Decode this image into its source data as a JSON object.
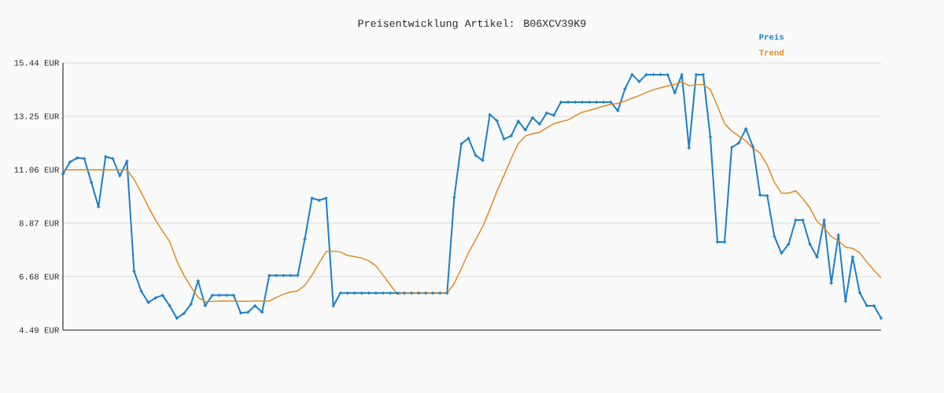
{
  "chart_data": {
    "type": "line",
    "title": "Preisentwicklung Artikel: B06XCV39K9",
    "categories": [
      null,
      null,
      null,
      null,
      null,
      null,
      null,
      null,
      null,
      null,
      null,
      null,
      null,
      null,
      null,
      null,
      null,
      null,
      null,
      null,
      null,
      null,
      null,
      null,
      null,
      null,
      null,
      null,
      null,
      null,
      null,
      null,
      null,
      null,
      null,
      null,
      null,
      null,
      null,
      null,
      null,
      null,
      null,
      null,
      null,
      null,
      null,
      null,
      null,
      null,
      null,
      null,
      null,
      null,
      null,
      null,
      null,
      null,
      null,
      null,
      null,
      null,
      null,
      null,
      null,
      null,
      null,
      null,
      null,
      null,
      null,
      null,
      null,
      null,
      null,
      null,
      null,
      null,
      null,
      null,
      null,
      null,
      null,
      null,
      null,
      null,
      null,
      null,
      null,
      null,
      null,
      null,
      null,
      null,
      null,
      null,
      null,
      null,
      null,
      null,
      null,
      null,
      null,
      null,
      null,
      null,
      null,
      null,
      null,
      null,
      null,
      null,
      null,
      null,
      null,
      null
    ],
    "series": [
      {
        "name": "Preis",
        "color": "#1a7fc9",
        "marker": "cross",
        "values": [
          10.88,
          11.38,
          11.55,
          11.52,
          10.54,
          9.54,
          11.6,
          11.52,
          10.81,
          11.42,
          6.9,
          6.09,
          5.62,
          5.81,
          5.92,
          5.49,
          4.98,
          5.17,
          5.56,
          6.51,
          5.49,
          5.92,
          5.92,
          5.92,
          5.92,
          5.19,
          5.22,
          5.49,
          5.22,
          6.73,
          6.73,
          6.73,
          6.73,
          6.73,
          8.22,
          9.9,
          9.81,
          9.9,
          5.48,
          6.01,
          6.01,
          6.01,
          6.01,
          6.01,
          6.01,
          6.01,
          6.01,
          6.01,
          6.01,
          6.01,
          6.01,
          6.01,
          6.01,
          6.01,
          6.01,
          9.93,
          12.12,
          12.35,
          11.65,
          11.44,
          13.32,
          13.07,
          12.32,
          12.45,
          13.05,
          12.69,
          13.19,
          12.93,
          13.39,
          13.29,
          13.83,
          13.83,
          13.83,
          13.83,
          13.83,
          13.83,
          13.83,
          13.83,
          13.48,
          14.37,
          14.96,
          14.67,
          14.96,
          14.96,
          14.96,
          14.95,
          14.21,
          14.96,
          11.95,
          14.96,
          14.96,
          12.4,
          8.1,
          8.1,
          11.97,
          12.16,
          12.74,
          12.0,
          10.02,
          10.0,
          8.33,
          7.64,
          8.01,
          9.0,
          9.0,
          8.01,
          7.48,
          9.0,
          6.41,
          8.39,
          5.67,
          7.49,
          6.02,
          5.49,
          5.49,
          4.98
        ]
      },
      {
        "name": "Trend",
        "color": "#e3891c",
        "marker": "none",
        "values": [
          11.06,
          11.06,
          11.06,
          11.06,
          11.06,
          11.06,
          11.06,
          11.06,
          11.06,
          11.06,
          10.66,
          10.13,
          9.54,
          9.0,
          8.55,
          8.12,
          7.33,
          6.74,
          6.26,
          5.83,
          5.65,
          5.67,
          5.68,
          5.68,
          5.68,
          5.67,
          5.67,
          5.68,
          5.68,
          5.68,
          5.83,
          5.96,
          6.05,
          6.1,
          6.32,
          6.74,
          7.23,
          7.71,
          7.73,
          7.69,
          7.55,
          7.5,
          7.44,
          7.33,
          7.12,
          6.74,
          6.35,
          5.96,
          6.01,
          6.01,
          6.01,
          6.01,
          6.01,
          6.01,
          6.01,
          6.4,
          7.01,
          7.66,
          8.19,
          8.73,
          9.43,
          10.18,
          10.83,
          11.52,
          12.13,
          12.44,
          12.54,
          12.6,
          12.78,
          12.95,
          13.03,
          13.1,
          13.27,
          13.42,
          13.49,
          13.58,
          13.67,
          13.74,
          13.78,
          13.88,
          13.99,
          14.1,
          14.23,
          14.34,
          14.42,
          14.5,
          14.56,
          14.66,
          14.5,
          14.55,
          14.55,
          14.35,
          13.67,
          12.95,
          12.65,
          12.44,
          12.24,
          11.95,
          11.74,
          11.25,
          10.55,
          10.1,
          10.1,
          10.2,
          9.88,
          9.5,
          8.94,
          8.68,
          8.32,
          8.16,
          7.89,
          7.84,
          7.66,
          7.28,
          6.94,
          6.64
        ]
      }
    ],
    "ylim": [
      4.49,
      15.44
    ],
    "yticks": [
      {
        "value": 4.49,
        "label": "4.49 EUR"
      },
      {
        "value": 6.68,
        "label": "6.68 EUR"
      },
      {
        "value": 8.87,
        "label": "8.87 EUR"
      },
      {
        "value": 11.06,
        "label": "11.06 EUR"
      },
      {
        "value": 13.25,
        "label": "13.25 EUR"
      },
      {
        "value": 15.44,
        "label": "15.44 EUR"
      }
    ],
    "grid": "y",
    "legend": "top right",
    "line_style": "solid"
  }
}
